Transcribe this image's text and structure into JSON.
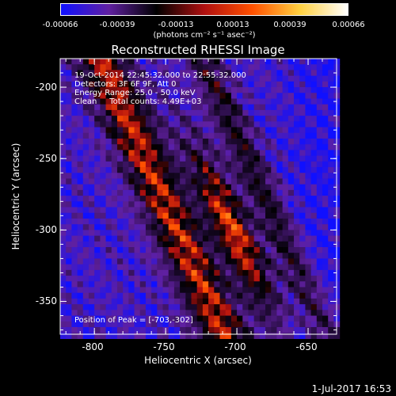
{
  "colorbar": {
    "tick_labels": [
      "-0.00066",
      "-0.00039",
      "-0.00013",
      "0.00013",
      "0.00039",
      "0.00066"
    ],
    "units": "(photons cm⁻² s⁻¹ asec⁻²)",
    "colors": [
      "#1010ff",
      "#6020a0",
      "#000000",
      "#b01010",
      "#ff5000",
      "#ffd040",
      "#ffffff"
    ]
  },
  "annotations": {
    "line1": "19-Oct-2014 22:45:32.000 to 22:55:32.000",
    "line2": "Detectors: 3F 6F 9F, Att 0",
    "line3": "Energy Range: 25.0 - 50.0 keV",
    "line4": "Clean     Total counts: 4.49E+03",
    "peak": "Position of Peak = [-703,-302]"
  },
  "timestamp": "1-Jul-2017 16:53",
  "chart_data": {
    "type": "heatmap",
    "title": "Reconstructed RHESSI Image",
    "xlabel": "Heliocentric X (arcsec)",
    "ylabel": "Heliocentric Y (arcsec)",
    "xlim": [
      -824,
      -630
    ],
    "ylim": [
      -373,
      -180
    ],
    "x_ticks": [
      -800,
      -750,
      -700,
      -650
    ],
    "y_ticks": [
      -200,
      -250,
      -300,
      -350
    ],
    "x_tick_labels": [
      "-800",
      "-750",
      "-700",
      "-650"
    ],
    "y_tick_labels": [
      "-200",
      "-250",
      "-300",
      "-350"
    ],
    "zlim": [
      -0.00066,
      0.00066
    ],
    "peak_position": [
      -703,
      -302
    ]
  }
}
